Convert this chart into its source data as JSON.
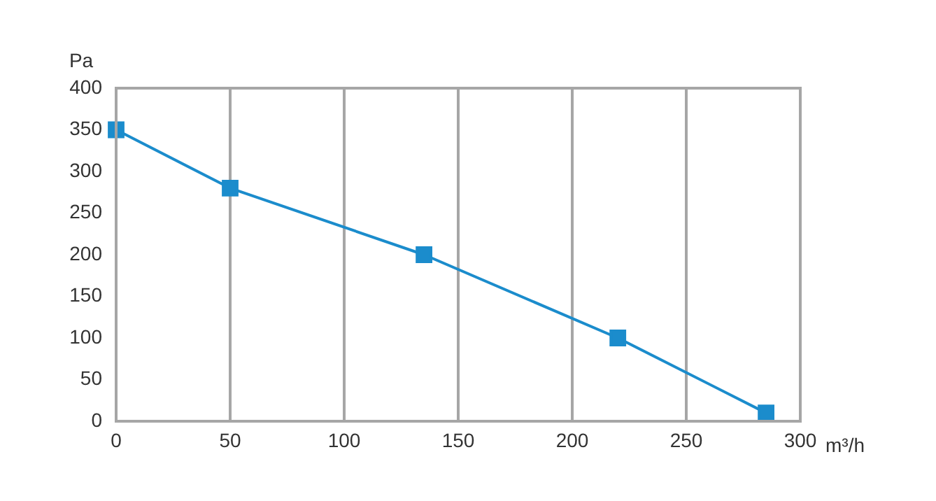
{
  "chart_data": {
    "type": "line",
    "xlabel": "m³/h",
    "ylabel": "Pa",
    "x": [
      0,
      50,
      135,
      220,
      285
    ],
    "series": [
      {
        "color": "#1b8ccc",
        "values": [
          350,
          280,
          200,
          100,
          10
        ]
      }
    ],
    "xlim": [
      0,
      300
    ],
    "xticks": [
      0,
      50,
      100,
      150,
      200,
      250,
      300
    ],
    "ylim": [
      0,
      400
    ],
    "yticks": [
      0,
      50,
      100,
      150,
      200,
      250,
      300,
      350,
      400
    ],
    "grid": "x",
    "legend": false,
    "marker": "square",
    "line_style": "solid"
  }
}
